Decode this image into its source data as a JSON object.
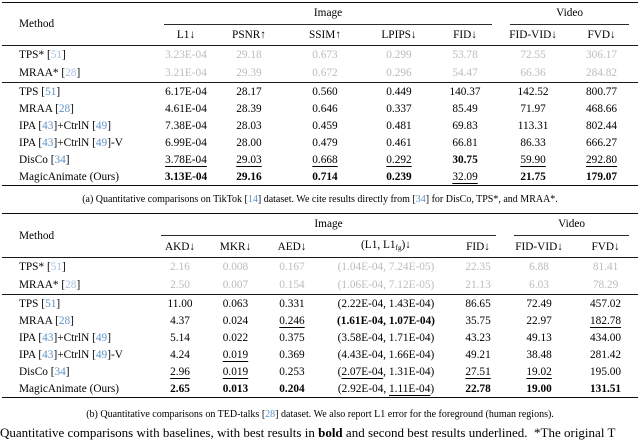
{
  "colors": {
    "cite_blue": "#5e92c8",
    "cited_row_gray": "#bcbcbc",
    "rule_black": "#0c0c0c"
  },
  "tables": [
    {
      "method_header": "Method",
      "groups": [
        {
          "label": "Image",
          "span": 5
        },
        {
          "label": "Video",
          "span": 2
        }
      ],
      "columns": [
        "L1↓",
        "PSNR↑",
        "SSIM↑",
        "LPIPS↓",
        "FID↓",
        "FID-VID↓",
        "FVD↓"
      ],
      "row_groups": [
        [
          {
            "method": "TPS* [51]",
            "cells": [
              "3.23E-04",
              "29.18",
              "0.673",
              "0.299",
              "53.78",
              "72.55",
              "306.17"
            ]
          },
          {
            "method": "MRAA* [28]",
            "cells": [
              "3.21E-04",
              "29.39",
              "0.672",
              "0.296",
              "54.47",
              "66.36",
              "284.82"
            ]
          }
        ],
        [
          {
            "method": "TPS [51]",
            "cells": [
              "6.17E-04",
              "28.17",
              "0.560",
              "0.449",
              "140.37",
              "142.52",
              "800.77"
            ]
          },
          {
            "method": "MRAA [28]",
            "cells": [
              "4.61E-04",
              "28.39",
              "0.646",
              "0.337",
              "85.49",
              "71.97",
              "468.66"
            ]
          },
          {
            "method": "IPA [43]+CtrlN [49]",
            "cells": [
              "7.38E-04",
              "28.03",
              "0.459",
              "0.481",
              "69.83",
              "113.31",
              "802.44"
            ]
          },
          {
            "method": "IPA [43]+CtrlN [49]-V",
            "cells": [
              "6.99E-04",
              "28.00",
              "0.479",
              "0.461",
              "66.81",
              "86.33",
              "666.27"
            ]
          },
          {
            "method": "DisCo [34]",
            "cells": [
              {
                "v": "3.78E-04",
                "u": true
              },
              {
                "v": "29.03",
                "u": true
              },
              {
                "v": "0.668",
                "u": true
              },
              {
                "v": "0.292",
                "u": true
              },
              {
                "v": "30.75",
                "b": true
              },
              {
                "v": "59.90",
                "u": true
              },
              {
                "v": "292.80",
                "u": true
              }
            ]
          },
          {
            "method": "MagicAnimate (Ours)",
            "cells": [
              {
                "v": "3.13E-04",
                "b": true
              },
              {
                "v": "29.16",
                "b": true
              },
              {
                "v": "0.714",
                "b": true
              },
              {
                "v": "0.239",
                "b": true
              },
              {
                "v": "32.09",
                "u": true
              },
              {
                "v": "21.75",
                "b": true
              },
              {
                "v": "179.07",
                "b": true
              }
            ]
          }
        ]
      ],
      "caption": "(a) Quantitative comparisons on TikTok [14] dataset. We cite results directly from [34] for DisCo, TPS*, and MRAA*."
    },
    {
      "method_header": "Method",
      "groups": [
        {
          "label": "Image",
          "span": 5
        },
        {
          "label": "Video",
          "span": 2
        }
      ],
      "columns": [
        "AKD↓",
        "MKR↓",
        "AED↓",
        {
          "segs": [
            {
              "t": "(L1, L1"
            },
            {
              "t": "fg",
              "sub": true
            },
            {
              "t": ")↓"
            }
          ]
        },
        "FID↓",
        "FID-VID↓",
        "FVD↓"
      ],
      "row_groups": [
        [
          {
            "method": "TPS* [51]",
            "cells": [
              "2.16",
              "0.008",
              "0.167",
              "(1.04E-04, 7.24E-05)",
              "22.35",
              "6.88",
              "81.41"
            ]
          },
          {
            "method": "MRAA* [28]",
            "cells": [
              "2.50",
              "0.007",
              "0.154",
              "(1.06E-04, 7.12E-05)",
              "21.13",
              "6.03",
              "78.29"
            ]
          }
        ],
        [
          {
            "method": "TPS [51]",
            "cells": [
              "11.00",
              "0.063",
              "0.331",
              "(2.22E-04, 1.43E-04)",
              "86.65",
              "72.49",
              "457.02"
            ]
          },
          {
            "method": "MRAA [28]",
            "cells": [
              "4.37",
              "0.024",
              {
                "v": "0.246",
                "u": true
              },
              {
                "v": "(1.61E-04, 1.07E-04)",
                "b": true
              },
              "35.75",
              "22.97",
              {
                "v": "182.78",
                "u": true
              }
            ]
          },
          {
            "method": "IPA [43]+CtrlN [49]",
            "cells": [
              "5.14",
              "0.022",
              "0.375",
              "(3.58E-04, 1.71E-04)",
              "43.23",
              "49.13",
              "434.00"
            ]
          },
          {
            "method": "IPA [43]+CtrlN [49]-V",
            "cells": [
              "4.24",
              {
                "v": "0.019",
                "u": true
              },
              "0.369",
              "(4.43E-04, 1.66E-04)",
              "49.21",
              "38.48",
              "281.42"
            ]
          },
          {
            "method": "DisCo [34]",
            "cells": [
              {
                "v": "2.96",
                "u": true
              },
              {
                "v": "0.019",
                "u": true
              },
              "0.253",
              {
                "segs": [
                  {
                    "t": "("
                  },
                  {
                    "t": "2.07E-04",
                    "u": true
                  },
                  {
                    "t": ", 1.31E-04)"
                  }
                ]
              },
              {
                "v": "27.51",
                "u": true
              },
              {
                "v": "19.02",
                "u": true
              },
              "195.00"
            ]
          },
          {
            "method": "MagicAnimate (Ours)",
            "cells": [
              {
                "v": "2.65",
                "b": true
              },
              {
                "v": "0.013",
                "b": true
              },
              {
                "v": "0.204",
                "b": true
              },
              {
                "segs": [
                  {
                    "t": "(2.92E-04, "
                  },
                  {
                    "t": "1.11E-04",
                    "u": true
                  },
                  {
                    "t": ")"
                  }
                ]
              },
              {
                "v": "22.78",
                "b": true
              },
              {
                "v": "19.00",
                "b": true
              },
              {
                "v": "131.51",
                "b": true
              }
            ]
          }
        ]
      ],
      "caption": "(b) Quantitative comparisons on TED-talks [28] dataset. We also report L1 error for the foreground (human regions)."
    }
  ],
  "note": {
    "segments": [
      {
        "t": "Quantitative comparisons with baselines, with best results in "
      },
      {
        "t": "bold",
        "b": true
      },
      {
        "t": " and second best results "
      },
      {
        "t": "underlined",
        "u": true
      },
      {
        "t": ".  *The original T"
      }
    ]
  }
}
